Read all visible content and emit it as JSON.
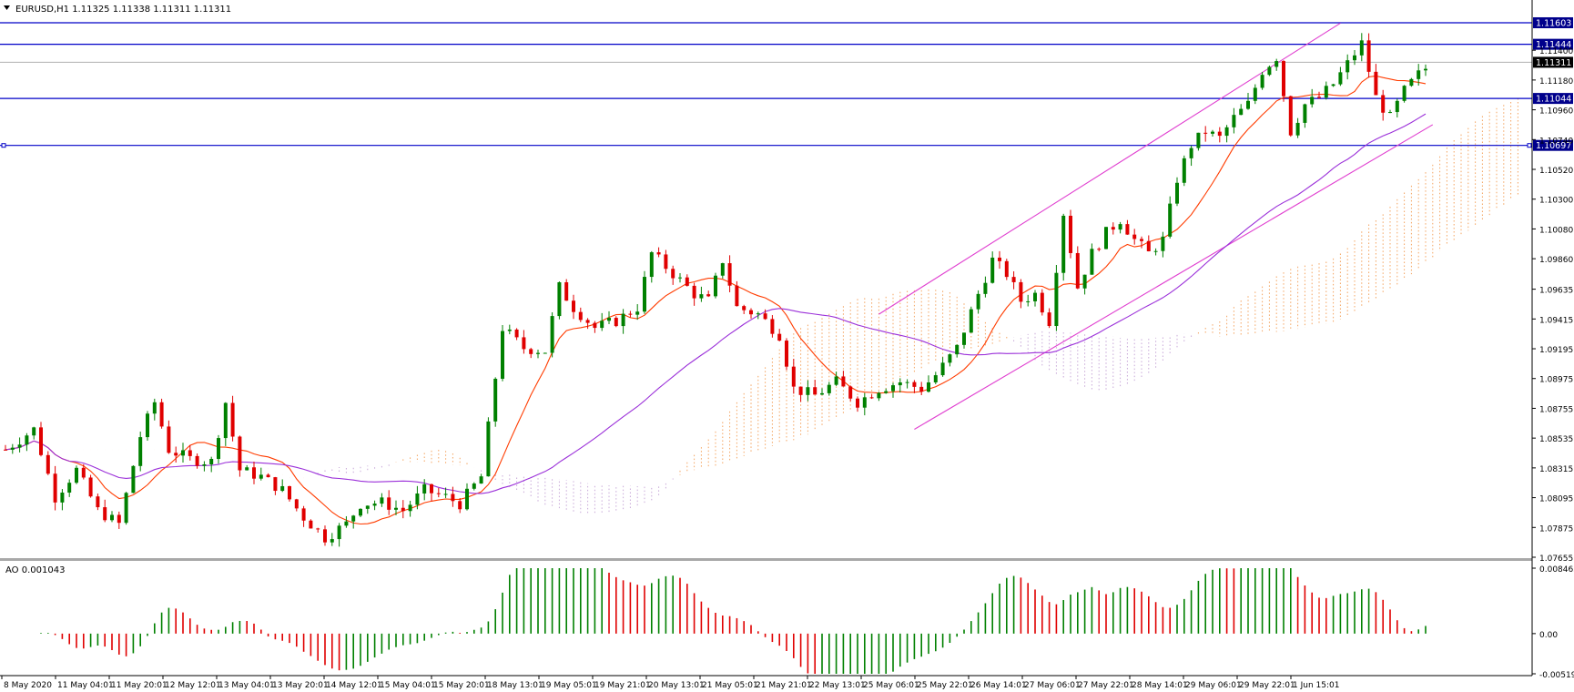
{
  "chart_data": {
    "type": "candlestick",
    "symbol": "EURUSD,H1",
    "title": "EURUSD,H1  1.11325 1.11338 1.11311 1.11311",
    "ohlc_header": {
      "open": "1.11325",
      "high": "1.11338",
      "low": "1.11311",
      "close": "1.11311"
    },
    "price_axis": {
      "ticks": [
        "1.11400",
        "1.11180",
        "1.10960",
        "1.10740",
        "1.10520",
        "1.10300",
        "1.10080",
        "1.09860",
        "1.09635",
        "1.09415",
        "1.09195",
        "1.08975",
        "1.08755",
        "1.08535",
        "1.08315",
        "1.08095",
        "1.07875",
        "1.07655"
      ],
      "range": [
        1.07655,
        1.1165
      ]
    },
    "horizontal_levels": [
      {
        "label": "1.11603",
        "value": 1.11603,
        "color": "#0000c8"
      },
      {
        "label": "1.11444",
        "value": 1.11444,
        "color": "#0000c8"
      },
      {
        "label": "1.11044",
        "value": 1.11044,
        "color": "#0000c8"
      },
      {
        "label": "1.10697",
        "value": 1.10697,
        "color": "#0000c8"
      }
    ],
    "current_price": {
      "label": "1.11311",
      "value": 1.11311
    },
    "time_axis": [
      "8 May 2020",
      "11 May 04:01",
      "11 May 20:01",
      "12 May 12:01",
      "13 May 04:01",
      "13 May 20:01",
      "14 May 12:01",
      "15 May 04:01",
      "15 May 20:01",
      "18 May 13:01",
      "19 May 05:01",
      "19 May 21:01",
      "20 May 13:01",
      "21 May 05:01",
      "21 May 21:01",
      "22 May 13:01",
      "25 May 06:01",
      "25 May 22:01",
      "26 May 14:01",
      "27 May 06:01",
      "27 May 22:01",
      "28 May 14:01",
      "29 May 06:01",
      "29 May 22:01",
      "1 Jun 15:01"
    ],
    "price_path": [
      [
        0,
        1.0845
      ],
      [
        4,
        1.086
      ],
      [
        7,
        1.081
      ],
      [
        10,
        1.083
      ],
      [
        13,
        1.08
      ],
      [
        16,
        1.079
      ],
      [
        19,
        1.0855
      ],
      [
        21,
        1.088
      ],
      [
        23,
        1.0845
      ],
      [
        26,
        1.0838
      ],
      [
        29,
        1.0836
      ],
      [
        31,
        1.088
      ],
      [
        33,
        1.083
      ],
      [
        36,
        1.0825
      ],
      [
        39,
        1.0815
      ],
      [
        42,
        1.0795
      ],
      [
        45,
        1.078
      ],
      [
        48,
        1.079
      ],
      [
        50,
        1.0805
      ],
      [
        53,
        1.0806
      ],
      [
        56,
        1.08
      ],
      [
        59,
        1.0815
      ],
      [
        62,
        1.081
      ],
      [
        64,
        1.0805
      ],
      [
        67,
        1.0825
      ],
      [
        70,
        1.0935
      ],
      [
        73,
        1.092
      ],
      [
        76,
        1.0918
      ],
      [
        78,
        1.0965
      ],
      [
        80,
        1.095
      ],
      [
        83,
        1.0935
      ],
      [
        86,
        1.094
      ],
      [
        89,
        1.095
      ],
      [
        91,
        1.099
      ],
      [
        94,
        1.0975
      ],
      [
        97,
        1.096
      ],
      [
        99,
        1.0955
      ],
      [
        101,
        1.0985
      ],
      [
        103,
        1.095
      ],
      [
        106,
        1.0945
      ],
      [
        109,
        1.093
      ],
      [
        111,
        1.089
      ],
      [
        114,
        1.0885
      ],
      [
        117,
        1.0895
      ],
      [
        120,
        1.088
      ],
      [
        123,
        1.089
      ],
      [
        126,
        1.0895
      ],
      [
        129,
        1.089
      ],
      [
        131,
        1.09
      ],
      [
        134,
        1.092
      ],
      [
        137,
        1.096
      ],
      [
        139,
        1.0985
      ],
      [
        141,
        1.0975
      ],
      [
        143,
        1.0955
      ],
      [
        145,
        1.096
      ],
      [
        147,
        1.094
      ],
      [
        149,
        1.102
      ],
      [
        151,
        1.0965
      ],
      [
        153,
        1.099
      ],
      [
        155,
        1.1005
      ],
      [
        157,
        1.1015
      ],
      [
        159,
        1.1
      ],
      [
        161,
        1.099
      ],
      [
        163,
        1.1
      ],
      [
        165,
        1.1045
      ],
      [
        167,
        1.107
      ],
      [
        169,
        1.108
      ],
      [
        171,
        1.1075
      ],
      [
        173,
        1.109
      ],
      [
        175,
        1.11
      ],
      [
        177,
        1.1125
      ],
      [
        179,
        1.1135
      ],
      [
        181,
        1.108
      ],
      [
        183,
        1.11
      ],
      [
        185,
        1.1105
      ],
      [
        187,
        1.1115
      ],
      [
        189,
        1.113
      ],
      [
        191,
        1.1145
      ],
      [
        193,
        1.1105
      ],
      [
        195,
        1.109
      ],
      [
        197,
        1.111
      ],
      [
        199,
        1.1122
      ],
      [
        201,
        1.1131
      ]
    ],
    "indicators": {
      "ao": {
        "label": "AO 0.001043",
        "axis_ticks": [
          "0.008465",
          "0.00",
          "-0.005198"
        ],
        "range": [
          -0.005198,
          0.008465
        ]
      }
    }
  }
}
